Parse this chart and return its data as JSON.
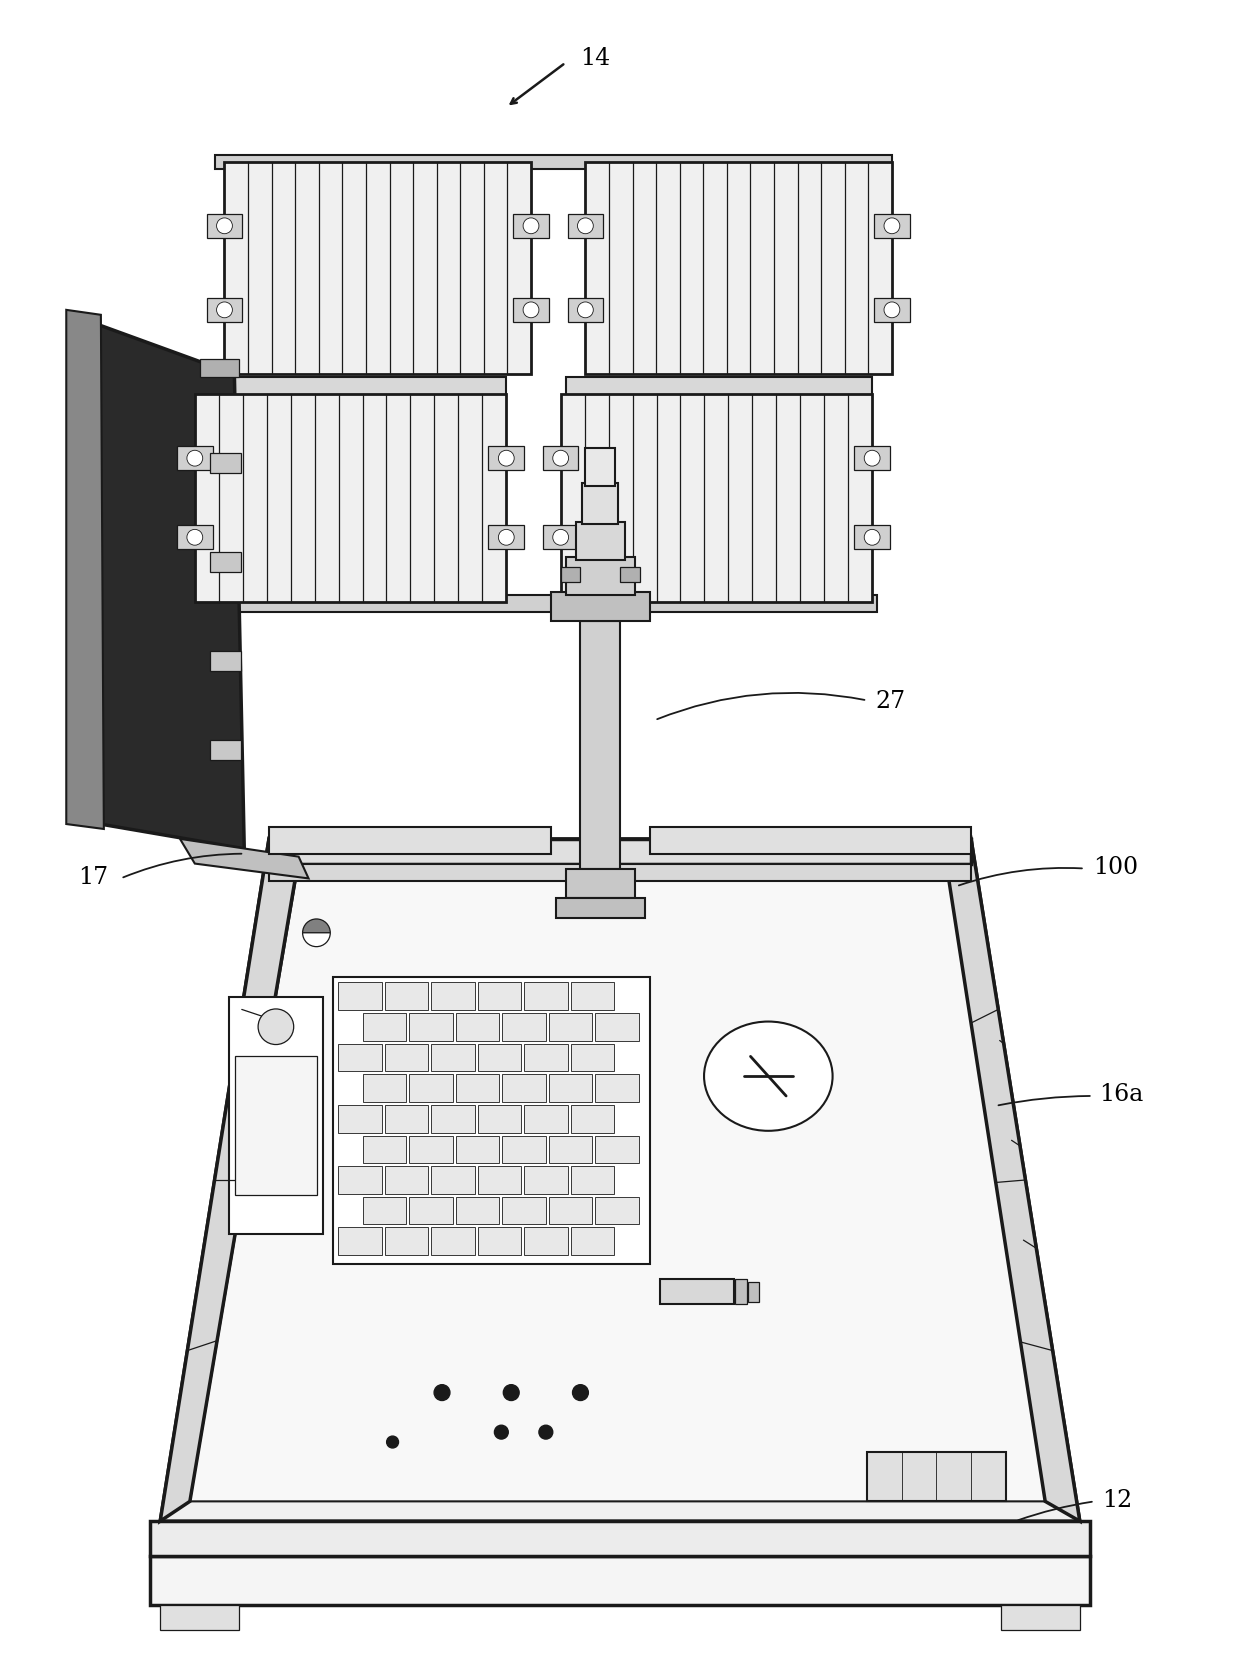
{
  "bg": "#ffffff",
  "lc": "#1a1a1a",
  "fig_w": 12.4,
  "fig_h": 16.56,
  "dpi": 100
}
